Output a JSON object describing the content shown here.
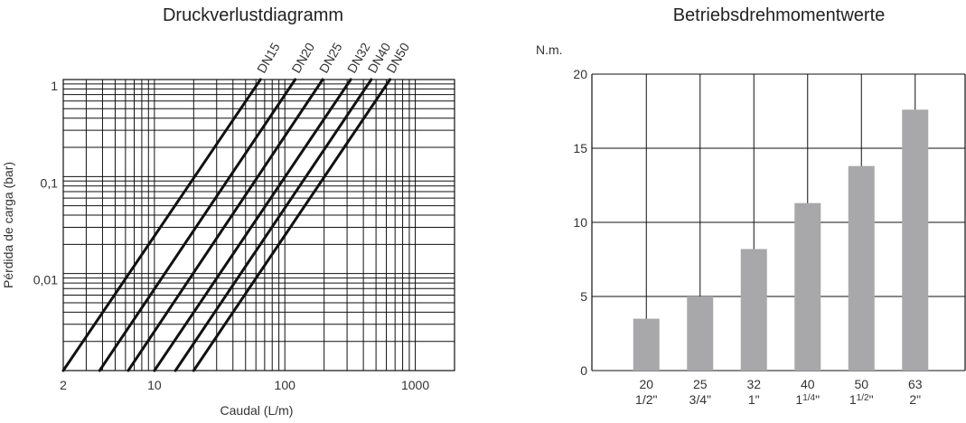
{
  "chart_data": [
    {
      "type": "line",
      "title": "Druckverlustdiagramm",
      "xlabel": "Caudal (L/m)",
      "ylabel": "Pérdida de carga (bar)",
      "x_scale": "log",
      "y_scale": "log",
      "xlim": [
        2,
        2000
      ],
      "ylim": [
        0.001,
        1
      ],
      "x_tick_labels": [
        "2",
        "10",
        "100",
        "1000"
      ],
      "x_tick_values": [
        2,
        10,
        100,
        1000
      ],
      "y_tick_labels": [
        "1",
        "0,1",
        "0,01"
      ],
      "y_tick_values": [
        1,
        0.1,
        0.01
      ],
      "grid": true,
      "series": [
        {
          "name": "DN15",
          "x": [
            2,
            65
          ],
          "y": [
            0.001,
            1
          ]
        },
        {
          "name": "DN20",
          "x": [
            3.8,
            120
          ],
          "y": [
            0.001,
            1
          ]
        },
        {
          "name": "DN25",
          "x": [
            6.3,
            195
          ],
          "y": [
            0.001,
            1
          ]
        },
        {
          "name": "DN32",
          "x": [
            10,
            320
          ],
          "y": [
            0.001,
            1
          ]
        },
        {
          "name": "DN40",
          "x": [
            14.5,
            460
          ],
          "y": [
            0.001,
            1
          ]
        },
        {
          "name": "DN50",
          "x": [
            20,
            640
          ],
          "y": [
            0.001,
            1
          ]
        }
      ]
    },
    {
      "type": "bar",
      "title": "Betriebsdrehmomentwerte",
      "ylabel": "N.m.",
      "ylim": [
        0,
        20
      ],
      "y_ticks": [
        0,
        5,
        10,
        15,
        20
      ],
      "grid": true,
      "categories": [
        {
          "top": "20",
          "bottom": "1/2\""
        },
        {
          "top": "25",
          "bottom": "3/4\""
        },
        {
          "top": "32",
          "bottom": "1\""
        },
        {
          "top": "40",
          "bottom_main": "1",
          "bottom_sup": "1/4",
          "bottom_tail": "\""
        },
        {
          "top": "50",
          "bottom_main": "1",
          "bottom_sup": "1/2",
          "bottom_tail": "\""
        },
        {
          "top": "63",
          "bottom": "2\""
        }
      ],
      "values": [
        3.5,
        5.0,
        8.2,
        11.3,
        13.8,
        17.6
      ],
      "bar_color": "#a8a8aa"
    }
  ]
}
